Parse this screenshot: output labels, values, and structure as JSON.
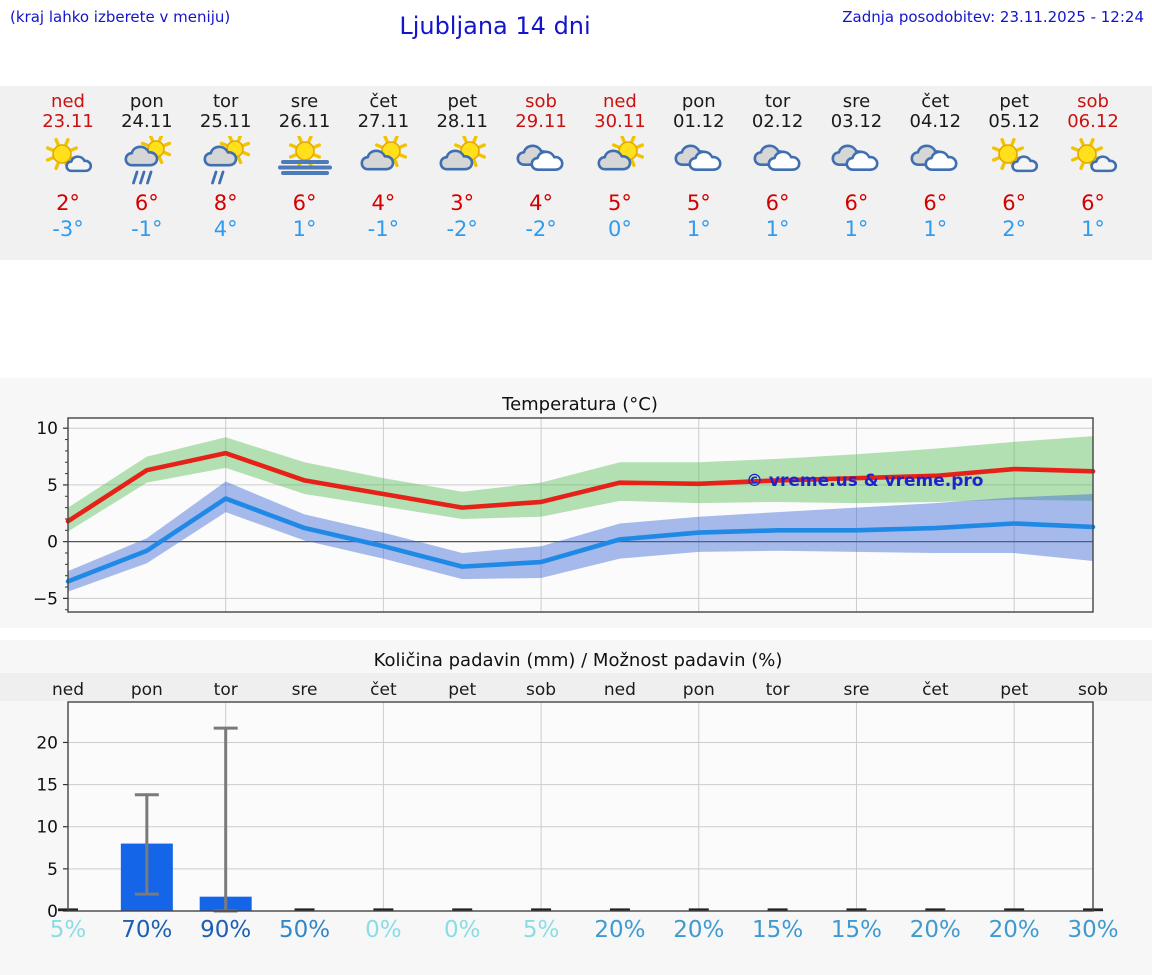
{
  "header": {
    "hint": "(kraj lahko izberete v meniju)",
    "title": "Ljubljana 14 dni",
    "updated": "Zadnja posodobitev: 23.11.2025 - 12:24"
  },
  "colors": {
    "header_text": "#1414cd",
    "weekend": "#cc1111",
    "weekday": "#1a1a1a",
    "high_temp": "#d40000",
    "low_temp": "#2f9bf0",
    "max_line": "#e62218",
    "min_line": "#2089e5",
    "max_band": "rgba(90,190,90,0.45)",
    "min_band": "rgba(60,105,215,0.45)",
    "bar": "#1565e8",
    "error_bar": "#7a7a7a",
    "grid": "#cccccc",
    "zero_line": "#555555",
    "plot_border": "#444444",
    "watermark": "#2222cc"
  },
  "days": [
    {
      "name": "ned",
      "date": "23.11",
      "weekend": true,
      "icon": "partly1",
      "high": "2°",
      "low": "-3°"
    },
    {
      "name": "pon",
      "date": "24.11",
      "weekend": false,
      "icon": "rain",
      "high": "6°",
      "low": "-1°"
    },
    {
      "name": "tor",
      "date": "25.11",
      "weekend": false,
      "icon": "lightrain",
      "high": "8°",
      "low": "4°"
    },
    {
      "name": "sre",
      "date": "26.11",
      "weekend": false,
      "icon": "fog",
      "high": "6°",
      "low": "1°"
    },
    {
      "name": "čet",
      "date": "27.11",
      "weekend": false,
      "icon": "partly2",
      "high": "4°",
      "low": "-1°"
    },
    {
      "name": "pet",
      "date": "28.11",
      "weekend": false,
      "icon": "partly2",
      "high": "3°",
      "low": "-2°"
    },
    {
      "name": "sob",
      "date": "29.11",
      "weekend": true,
      "icon": "cloudy",
      "high": "4°",
      "low": "-2°"
    },
    {
      "name": "ned",
      "date": "30.11",
      "weekend": true,
      "icon": "partly2",
      "high": "5°",
      "low": "0°"
    },
    {
      "name": "pon",
      "date": "01.12",
      "weekend": false,
      "icon": "cloudy",
      "high": "5°",
      "low": "1°"
    },
    {
      "name": "tor",
      "date": "02.12",
      "weekend": false,
      "icon": "cloudy",
      "high": "6°",
      "low": "1°"
    },
    {
      "name": "sre",
      "date": "03.12",
      "weekend": false,
      "icon": "cloudy",
      "high": "6°",
      "low": "1°"
    },
    {
      "name": "čet",
      "date": "04.12",
      "weekend": false,
      "icon": "cloudy",
      "high": "6°",
      "low": "1°"
    },
    {
      "name": "pet",
      "date": "05.12",
      "weekend": false,
      "icon": "partly1",
      "high": "6°",
      "low": "2°"
    },
    {
      "name": "sob",
      "date": "06.12",
      "weekend": true,
      "icon": "partly1",
      "high": "6°",
      "low": "1°"
    }
  ],
  "chart_data": [
    {
      "type": "line",
      "title": "Temperatura (°C)",
      "categories": [
        "ned 23.11",
        "pon 24.11",
        "tor 25.11",
        "sre 26.11",
        "čet 27.11",
        "pet 28.11",
        "sob 29.11",
        "ned 30.11",
        "pon 01.12",
        "tor 02.12",
        "sre 03.12",
        "čet 04.12",
        "pet 05.12",
        "sob 06.12"
      ],
      "series": [
        {
          "name": "max temperature",
          "values": [
            1.8,
            6.3,
            7.8,
            5.4,
            4.2,
            3.0,
            3.5,
            5.2,
            5.1,
            5.4,
            5.6,
            5.8,
            6.4,
            6.2
          ]
        },
        {
          "name": "min temperature",
          "values": [
            -3.5,
            -0.8,
            3.8,
            1.2,
            -0.4,
            -2.2,
            -1.8,
            0.2,
            0.8,
            1.0,
            1.0,
            1.2,
            1.6,
            1.3
          ]
        }
      ],
      "bands": [
        {
          "name": "max range",
          "upper": [
            3.0,
            7.5,
            9.2,
            7.0,
            5.6,
            4.4,
            5.2,
            7.0,
            7.0,
            7.3,
            7.7,
            8.2,
            8.8,
            9.3
          ],
          "lower": [
            0.9,
            5.2,
            6.5,
            4.2,
            3.1,
            2.0,
            2.2,
            3.6,
            3.4,
            3.5,
            3.4,
            3.5,
            3.7,
            3.6
          ]
        },
        {
          "name": "min range",
          "upper": [
            -2.6,
            0.3,
            5.3,
            2.4,
            0.8,
            -1.0,
            -0.4,
            1.6,
            2.2,
            2.6,
            3.0,
            3.4,
            3.9,
            4.2
          ],
          "lower": [
            -4.4,
            -1.9,
            2.6,
            0.1,
            -1.5,
            -3.3,
            -3.2,
            -1.5,
            -0.9,
            -0.8,
            -0.9,
            -1.0,
            -1.0,
            -1.7
          ]
        }
      ],
      "ylim": [
        -6.2,
        10.9
      ],
      "yticks": [
        -5,
        0,
        5,
        10
      ],
      "grid": true,
      "legend": "none",
      "watermark": "© vreme.us & vreme.pro"
    },
    {
      "type": "bar",
      "title": "Količina padavin (mm) / Možnost padavin (%)",
      "categories": [
        "ned",
        "pon",
        "tor",
        "sre",
        "čet",
        "pet",
        "sob",
        "ned",
        "pon",
        "tor",
        "sre",
        "čet",
        "pet",
        "sob"
      ],
      "values": [
        0,
        8,
        1.7,
        0,
        0,
        0,
        0,
        0,
        0,
        0,
        0,
        0,
        0,
        0
      ],
      "error_low": [
        0,
        2,
        0,
        0,
        0,
        0,
        0,
        0,
        0,
        0,
        0,
        0,
        0,
        0
      ],
      "error_high": [
        0,
        13.8,
        21.7,
        0,
        0,
        0,
        0,
        0,
        0,
        0,
        0,
        0,
        0,
        0
      ],
      "probabilities": [
        {
          "label": "5%",
          "color": "#8adde4"
        },
        {
          "label": "70%",
          "color": "#1c60b4"
        },
        {
          "label": "90%",
          "color": "#1c60b4"
        },
        {
          "label": "50%",
          "color": "#3287c8"
        },
        {
          "label": "0%",
          "color": "#8adde4"
        },
        {
          "label": "0%",
          "color": "#8adde4"
        },
        {
          "label": "5%",
          "color": "#8adde4"
        },
        {
          "label": "20%",
          "color": "#3f9ad2"
        },
        {
          "label": "20%",
          "color": "#3f9ad2"
        },
        {
          "label": "15%",
          "color": "#3f9ad2"
        },
        {
          "label": "15%",
          "color": "#3f9ad2"
        },
        {
          "label": "20%",
          "color": "#3f9ad2"
        },
        {
          "label": "20%",
          "color": "#3f9ad2"
        },
        {
          "label": "30%",
          "color": "#3f9ad2"
        }
      ],
      "ylim": [
        0,
        24.8
      ],
      "yticks": [
        0,
        5,
        10,
        15,
        20
      ],
      "grid": true,
      "legend": "none"
    }
  ]
}
